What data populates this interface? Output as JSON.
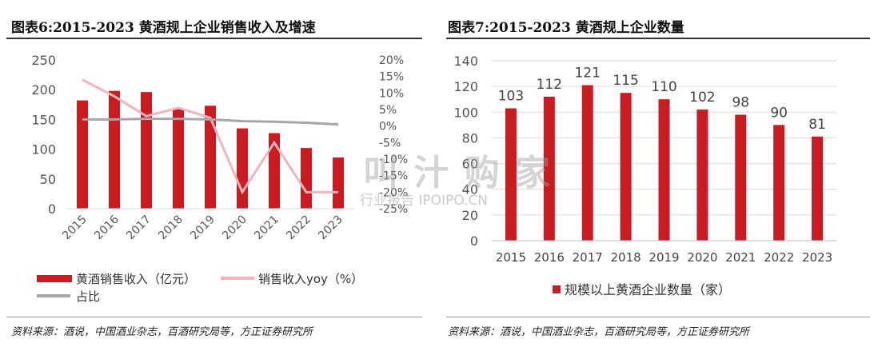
{
  "left": {
    "title": "图表6:2015-2023 黄酒规上企业销售收入及增速",
    "source": "资料来源：酒说，中国酒业杂志，百酒研究局等，方正证券研究所"
  },
  "right": {
    "title": "图表7:2015-2023 黄酒规上企业数量",
    "source": "资料来源：酒说，中国酒业杂志，百酒研究局等，方正证券研究所"
  },
  "watermark": {
    "main": "叫 汁 购 家",
    "sub": "行业报告 IPOIPO.CN"
  },
  "colors": {
    "bar": "#cc1a21",
    "yoy": "#f2b4b8",
    "share": "#a6a6a6",
    "grid": "#d9d9d9",
    "axis": "#595959"
  },
  "chart_data": [
    {
      "type": "bar",
      "categories": [
        "2015",
        "2016",
        "2017",
        "2018",
        "2019",
        "2020",
        "2021",
        "2022",
        "2023"
      ],
      "series": [
        {
          "name": "黄酒销售收入（亿元）",
          "type": "bar",
          "axis": "left",
          "values": [
            182,
            198,
            196,
            167,
            173,
            135,
            127,
            102,
            86
          ]
        },
        {
          "name": "销售收入yoy（%）",
          "type": "line",
          "axis": "right",
          "values": [
            14,
            9,
            3,
            5.5,
            2.5,
            -20,
            -5,
            -20,
            -20
          ]
        },
        {
          "name": "占比",
          "type": "line",
          "axis": "right",
          "values": [
            2,
            2,
            2.2,
            2.2,
            2,
            1.5,
            1.3,
            1,
            0.5
          ]
        }
      ],
      "y_left": {
        "lim": [
          0,
          250
        ],
        "ticks": [
          "0",
          "50",
          "100",
          "150",
          "200",
          "250"
        ]
      },
      "y_right": {
        "lim": [
          -25,
          20
        ],
        "ticks": [
          "-25%",
          "-20%",
          "-15%",
          "-10%",
          "-5%",
          "0%",
          "5%",
          "10%",
          "15%",
          "20%"
        ]
      },
      "grid": false,
      "legend_position": "bottom-left"
    },
    {
      "type": "bar",
      "categories": [
        "2015",
        "2016",
        "2017",
        "2018",
        "2019",
        "2020",
        "2021",
        "2022",
        "2023"
      ],
      "series": [
        {
          "name": "规模以上黄酒企业数量（家）",
          "values": [
            103,
            112,
            121,
            115,
            110,
            102,
            98,
            90,
            81
          ],
          "labels": [
            "103",
            "112",
            "121",
            "115",
            "110",
            "102",
            "98",
            "90",
            "81"
          ]
        }
      ],
      "ylim": [
        0,
        140
      ],
      "yticks": [
        "0",
        "20",
        "40",
        "60",
        "80",
        "100",
        "120",
        "140"
      ],
      "grid": true,
      "legend_position": "bottom-center"
    }
  ]
}
